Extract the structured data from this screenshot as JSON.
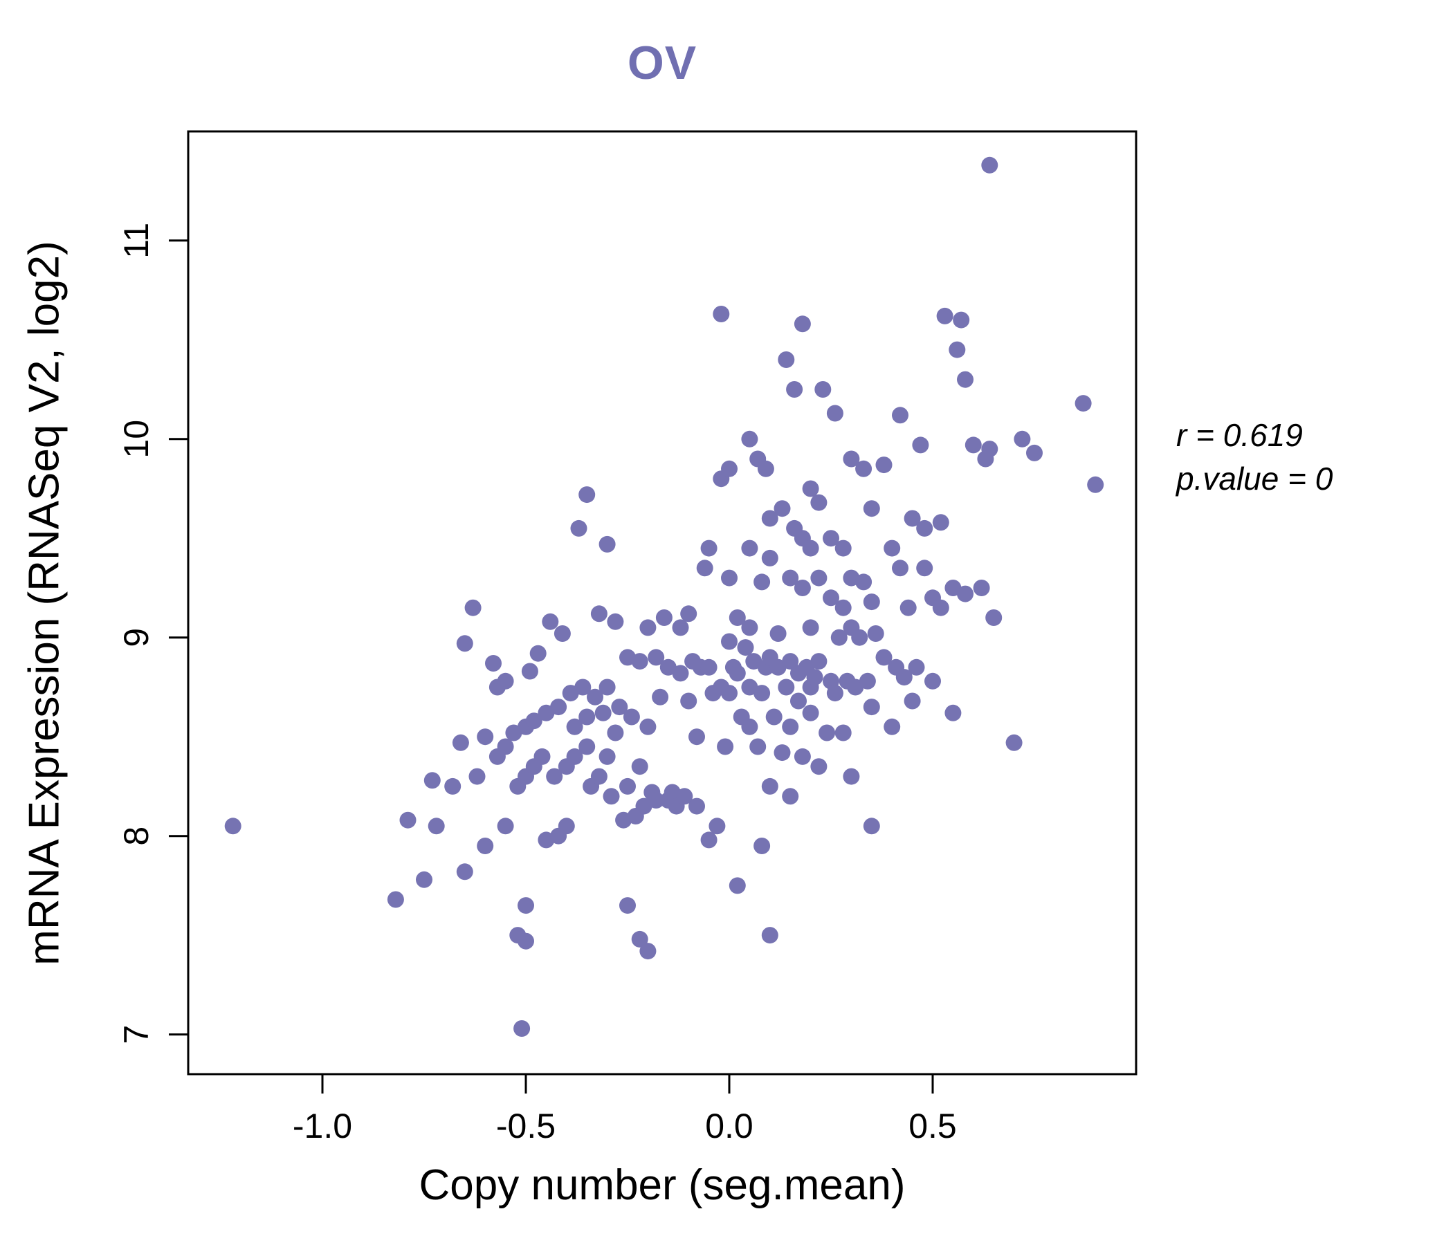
{
  "title": "OV",
  "annotation": {
    "line1": "r = 0.619",
    "line2": "p.value = 0"
  },
  "chart_data": {
    "type": "scatter",
    "title": "OV",
    "xlabel": "Copy number (seg.mean)",
    "ylabel": "mRNA Expression (RNASeq V2, log2)",
    "xlim": [
      -1.33,
      1.0
    ],
    "ylim": [
      6.8,
      11.55
    ],
    "x_ticks": [
      -1.0,
      -0.5,
      0.0,
      0.5
    ],
    "x_tick_labels": [
      "-1.0",
      "-0.5",
      "0.0",
      "0.5"
    ],
    "y_ticks": [
      7,
      8,
      9,
      10,
      11
    ],
    "y_tick_labels": [
      "7",
      "8",
      "9",
      "10",
      "11"
    ],
    "grid": false,
    "legend": "none",
    "point_color": "#7673b2",
    "title_color": "#706fb1",
    "correlation_r": 0.619,
    "p_value": 0,
    "points": [
      [
        -1.22,
        8.05
      ],
      [
        -0.82,
        7.68
      ],
      [
        -0.79,
        8.08
      ],
      [
        -0.75,
        7.78
      ],
      [
        -0.73,
        8.28
      ],
      [
        -0.72,
        8.05
      ],
      [
        -0.68,
        8.25
      ],
      [
        -0.66,
        8.47
      ],
      [
        -0.65,
        7.82
      ],
      [
        -0.65,
        8.97
      ],
      [
        -0.63,
        9.15
      ],
      [
        -0.62,
        8.3
      ],
      [
        -0.6,
        7.95
      ],
      [
        -0.6,
        8.5
      ],
      [
        -0.58,
        8.87
      ],
      [
        -0.57,
        8.75
      ],
      [
        -0.57,
        8.4
      ],
      [
        -0.55,
        8.05
      ],
      [
        -0.55,
        8.45
      ],
      [
        -0.55,
        8.78
      ],
      [
        -0.53,
        8.52
      ],
      [
        -0.52,
        8.25
      ],
      [
        -0.52,
        7.5
      ],
      [
        -0.51,
        7.03
      ],
      [
        -0.5,
        7.65
      ],
      [
        -0.5,
        7.47
      ],
      [
        -0.5,
        8.3
      ],
      [
        -0.5,
        8.55
      ],
      [
        -0.49,
        8.83
      ],
      [
        -0.48,
        8.35
      ],
      [
        -0.48,
        8.58
      ],
      [
        -0.47,
        8.92
      ],
      [
        -0.46,
        8.4
      ],
      [
        -0.45,
        7.98
      ],
      [
        -0.45,
        8.62
      ],
      [
        -0.44,
        9.08
      ],
      [
        -0.43,
        8.3
      ],
      [
        -0.42,
        8.0
      ],
      [
        -0.42,
        8.65
      ],
      [
        -0.41,
        9.02
      ],
      [
        -0.4,
        8.35
      ],
      [
        -0.4,
        8.05
      ],
      [
        -0.39,
        8.72
      ],
      [
        -0.38,
        8.4
      ],
      [
        -0.38,
        8.55
      ],
      [
        -0.37,
        9.55
      ],
      [
        -0.36,
        8.75
      ],
      [
        -0.35,
        8.45
      ],
      [
        -0.35,
        8.6
      ],
      [
        -0.35,
        9.72
      ],
      [
        -0.34,
        8.25
      ],
      [
        -0.33,
        8.7
      ],
      [
        -0.32,
        8.3
      ],
      [
        -0.32,
        9.12
      ],
      [
        -0.31,
        8.62
      ],
      [
        -0.3,
        8.4
      ],
      [
        -0.3,
        8.75
      ],
      [
        -0.3,
        9.47
      ],
      [
        -0.29,
        8.2
      ],
      [
        -0.28,
        8.52
      ],
      [
        -0.28,
        9.08
      ],
      [
        -0.27,
        8.65
      ],
      [
        -0.26,
        8.08
      ],
      [
        -0.25,
        7.65
      ],
      [
        -0.25,
        8.25
      ],
      [
        -0.25,
        8.9
      ],
      [
        -0.24,
        8.6
      ],
      [
        -0.23,
        8.1
      ],
      [
        -0.22,
        7.48
      ],
      [
        -0.22,
        8.35
      ],
      [
        -0.22,
        8.88
      ],
      [
        -0.21,
        8.15
      ],
      [
        -0.2,
        7.42
      ],
      [
        -0.2,
        8.55
      ],
      [
        -0.2,
        9.05
      ],
      [
        -0.19,
        8.22
      ],
      [
        -0.18,
        8.9
      ],
      [
        -0.18,
        8.18
      ],
      [
        -0.17,
        8.7
      ],
      [
        -0.16,
        9.1
      ],
      [
        -0.15,
        8.18
      ],
      [
        -0.15,
        8.85
      ],
      [
        -0.14,
        8.22
      ],
      [
        -0.13,
        8.15
      ],
      [
        -0.12,
        8.82
      ],
      [
        -0.12,
        9.05
      ],
      [
        -0.11,
        8.2
      ],
      [
        -0.1,
        8.68
      ],
      [
        -0.1,
        9.12
      ],
      [
        -0.09,
        8.88
      ],
      [
        -0.08,
        8.15
      ],
      [
        -0.08,
        8.5
      ],
      [
        -0.07,
        8.85
      ],
      [
        -0.06,
        9.35
      ],
      [
        -0.05,
        7.98
      ],
      [
        -0.05,
        8.85
      ],
      [
        -0.05,
        9.45
      ],
      [
        -0.04,
        8.72
      ],
      [
        -0.03,
        8.05
      ],
      [
        -0.02,
        8.75
      ],
      [
        -0.02,
        9.8
      ],
      [
        -0.02,
        10.63
      ],
      [
        -0.01,
        8.45
      ],
      [
        0.0,
        8.72
      ],
      [
        0.0,
        8.98
      ],
      [
        0.0,
        9.3
      ],
      [
        0.0,
        9.85
      ],
      [
        0.01,
        8.85
      ],
      [
        0.02,
        7.75
      ],
      [
        0.02,
        8.82
      ],
      [
        0.02,
        9.1
      ],
      [
        0.03,
        8.6
      ],
      [
        0.04,
        8.95
      ],
      [
        0.05,
        8.55
      ],
      [
        0.05,
        8.75
      ],
      [
        0.05,
        9.05
      ],
      [
        0.05,
        9.45
      ],
      [
        0.05,
        10.0
      ],
      [
        0.06,
        8.88
      ],
      [
        0.07,
        8.45
      ],
      [
        0.07,
        9.9
      ],
      [
        0.08,
        7.95
      ],
      [
        0.08,
        8.72
      ],
      [
        0.08,
        9.28
      ],
      [
        0.09,
        8.85
      ],
      [
        0.09,
        9.85
      ],
      [
        0.1,
        7.5
      ],
      [
        0.1,
        8.25
      ],
      [
        0.1,
        8.9
      ],
      [
        0.1,
        9.4
      ],
      [
        0.1,
        9.6
      ],
      [
        0.11,
        8.6
      ],
      [
        0.12,
        8.85
      ],
      [
        0.12,
        9.02
      ],
      [
        0.13,
        9.65
      ],
      [
        0.13,
        8.42
      ],
      [
        0.14,
        8.75
      ],
      [
        0.14,
        10.4
      ],
      [
        0.15,
        8.2
      ],
      [
        0.15,
        8.55
      ],
      [
        0.15,
        8.88
      ],
      [
        0.15,
        9.3
      ],
      [
        0.16,
        9.55
      ],
      [
        0.16,
        10.25
      ],
      [
        0.17,
        8.68
      ],
      [
        0.17,
        8.82
      ],
      [
        0.18,
        8.4
      ],
      [
        0.18,
        9.25
      ],
      [
        0.18,
        9.5
      ],
      [
        0.18,
        10.58
      ],
      [
        0.19,
        8.85
      ],
      [
        0.2,
        8.62
      ],
      [
        0.2,
        8.75
      ],
      [
        0.2,
        9.05
      ],
      [
        0.2,
        9.45
      ],
      [
        0.2,
        9.75
      ],
      [
        0.21,
        8.8
      ],
      [
        0.22,
        8.35
      ],
      [
        0.22,
        8.88
      ],
      [
        0.22,
        9.3
      ],
      [
        0.22,
        9.68
      ],
      [
        0.23,
        10.25
      ],
      [
        0.24,
        8.52
      ],
      [
        0.25,
        8.78
      ],
      [
        0.25,
        9.2
      ],
      [
        0.25,
        9.5
      ],
      [
        0.26,
        8.72
      ],
      [
        0.26,
        10.13
      ],
      [
        0.27,
        9.0
      ],
      [
        0.28,
        8.52
      ],
      [
        0.28,
        9.45
      ],
      [
        0.28,
        9.15
      ],
      [
        0.29,
        8.78
      ],
      [
        0.3,
        8.3
      ],
      [
        0.3,
        9.05
      ],
      [
        0.3,
        9.3
      ],
      [
        0.3,
        9.9
      ],
      [
        0.31,
        8.75
      ],
      [
        0.32,
        9.0
      ],
      [
        0.33,
        9.28
      ],
      [
        0.33,
        9.85
      ],
      [
        0.34,
        8.78
      ],
      [
        0.35,
        8.05
      ],
      [
        0.35,
        8.65
      ],
      [
        0.35,
        9.18
      ],
      [
        0.35,
        9.65
      ],
      [
        0.36,
        9.02
      ],
      [
        0.38,
        8.9
      ],
      [
        0.38,
        9.87
      ],
      [
        0.4,
        8.55
      ],
      [
        0.4,
        9.45
      ],
      [
        0.41,
        8.85
      ],
      [
        0.42,
        9.35
      ],
      [
        0.42,
        10.12
      ],
      [
        0.43,
        8.8
      ],
      [
        0.44,
        9.15
      ],
      [
        0.45,
        8.68
      ],
      [
        0.45,
        9.6
      ],
      [
        0.46,
        8.85
      ],
      [
        0.47,
        9.97
      ],
      [
        0.48,
        9.35
      ],
      [
        0.48,
        9.55
      ],
      [
        0.5,
        9.2
      ],
      [
        0.5,
        8.78
      ],
      [
        0.52,
        9.15
      ],
      [
        0.52,
        9.58
      ],
      [
        0.53,
        10.62
      ],
      [
        0.55,
        8.62
      ],
      [
        0.55,
        9.25
      ],
      [
        0.56,
        10.45
      ],
      [
        0.57,
        10.6
      ],
      [
        0.58,
        9.22
      ],
      [
        0.58,
        10.3
      ],
      [
        0.6,
        9.97
      ],
      [
        0.62,
        9.25
      ],
      [
        0.63,
        9.9
      ],
      [
        0.64,
        9.95
      ],
      [
        0.64,
        11.38
      ],
      [
        0.65,
        9.1
      ],
      [
        0.7,
        8.47
      ],
      [
        0.72,
        10.0
      ],
      [
        0.75,
        9.93
      ],
      [
        0.87,
        10.18
      ],
      [
        0.9,
        9.77
      ]
    ]
  }
}
